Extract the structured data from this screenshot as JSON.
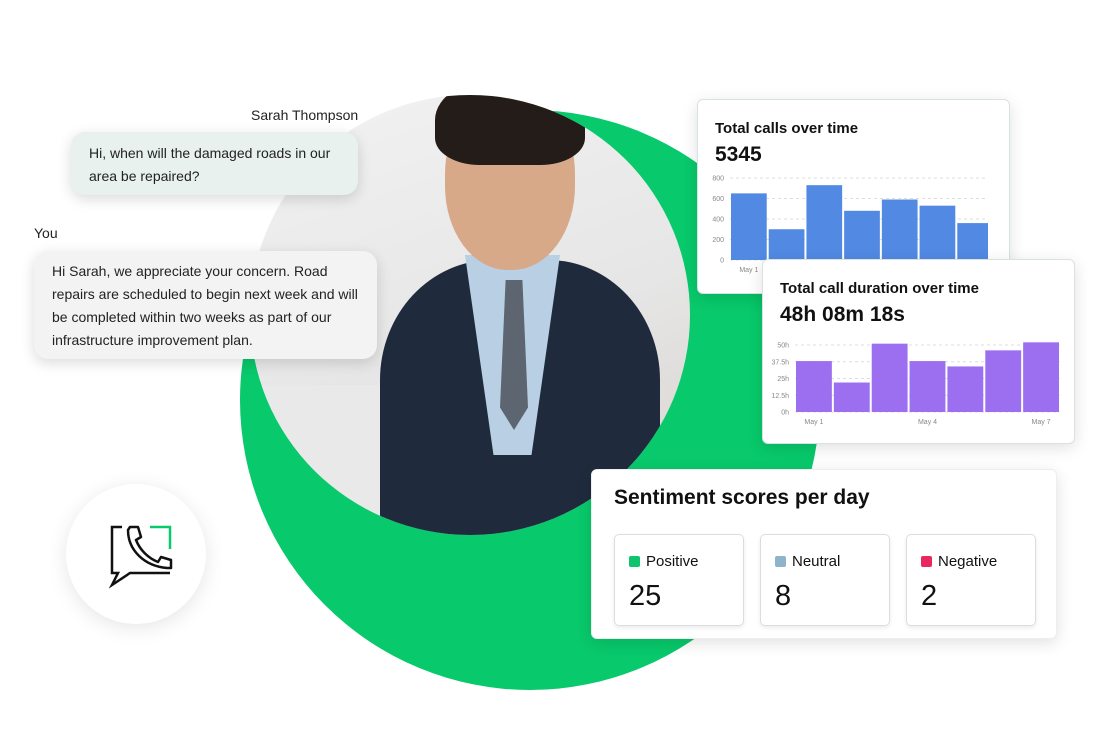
{
  "chat": {
    "customer_name": "Sarah Thompson",
    "customer_message": "Hi, when will the damaged roads in our area be repaired?",
    "agent_name": "You",
    "agent_message": "Hi Sarah, we appreciate your concern. Road repairs are scheduled to begin next week and will be completed within two weeks as part of our infrastructure improvement plan."
  },
  "icons": {
    "badge": "phone-chat-icon"
  },
  "colors": {
    "brand_green": "#08c96b",
    "calls_bar": "#5189e3",
    "duration_bar": "#9b6ff0",
    "positive": "#0fc46e",
    "neutral": "#8fb3c8",
    "negative": "#e8285e"
  },
  "chart_data": [
    {
      "type": "bar",
      "title": "Total calls over time",
      "total": "5345",
      "yticks": [
        "0",
        "200",
        "400",
        "600",
        "800"
      ],
      "ylim": [
        0,
        800
      ],
      "xticks": [
        "May 1"
      ],
      "values": [
        650,
        300,
        730,
        480,
        590,
        530,
        360
      ],
      "grid": true
    },
    {
      "type": "bar",
      "title": "Total call duration over time",
      "total": "48h 08m 18s",
      "yticks": [
        "0h",
        "12.5h",
        "25h",
        "37.5h",
        "50h"
      ],
      "ylim": [
        0,
        50
      ],
      "xticks": [
        "May 1",
        "May 4",
        "May 7"
      ],
      "values": [
        38,
        22,
        51,
        38,
        34,
        46,
        52
      ],
      "grid": true
    }
  ],
  "sentiment": {
    "title": "Sentiment scores per day",
    "items": [
      {
        "label": "Positive",
        "value": "25"
      },
      {
        "label": "Neutral",
        "value": "8"
      },
      {
        "label": "Negative",
        "value": "2"
      }
    ]
  }
}
